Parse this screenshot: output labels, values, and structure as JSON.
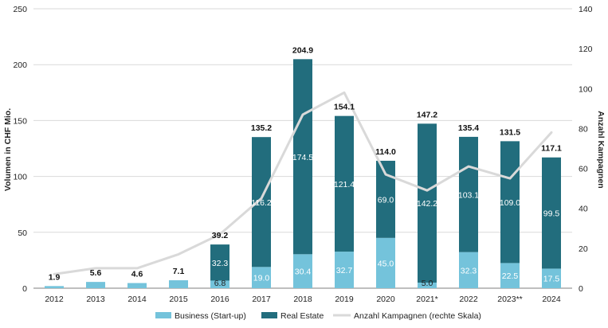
{
  "chart_data": {
    "type": "bar",
    "stacked": true,
    "categories": [
      "2012",
      "2013",
      "2014",
      "2015",
      "2016",
      "2017",
      "2018",
      "2019",
      "2020",
      "2021*",
      "2022",
      "2023**",
      "2024"
    ],
    "series": [
      {
        "name": "Business (Start-up)",
        "axis": "left",
        "color": "#74c3db",
        "values": [
          1.9,
          5.6,
          4.6,
          7.1,
          6.8,
          19.0,
          30.4,
          32.7,
          45.0,
          5.0,
          32.3,
          22.5,
          17.5
        ],
        "labels": [
          "",
          "",
          "",
          "",
          "6.8",
          "19.0",
          "30.4",
          "32.7",
          "45.0",
          "5.0",
          "32.3",
          "22.5",
          "17.5"
        ]
      },
      {
        "name": "Real Estate",
        "axis": "left",
        "color": "#226d7d",
        "values": [
          0,
          0,
          0,
          0,
          32.3,
          116.2,
          174.5,
          121.4,
          69.0,
          142.2,
          103.1,
          109.0,
          99.5
        ],
        "labels": [
          "",
          "",
          "",
          "",
          "32.3",
          "116.2",
          "174.5",
          "121.4",
          "69.0",
          "142.2",
          "103.1",
          "109.0",
          "99.5"
        ]
      },
      {
        "name": "Anzahl Kampagnen (rechte Skala)",
        "axis": "right",
        "type": "line",
        "color": "#d9d9d9",
        "values": [
          7,
          10,
          10,
          17,
          27,
          45,
          87,
          98,
          57,
          49,
          61,
          55,
          78
        ]
      }
    ],
    "totals": [
      "1.9",
      "5.6",
      "4.6",
      "7.1",
      "39.2",
      "135.2",
      "204.9",
      "154.1",
      "114.0",
      "147.2",
      "135.4",
      "131.5",
      "117.1"
    ],
    "ylabel": "Volumen in CHF Mio.",
    "y2label": "Anzahl Kampagnen",
    "ylim": [
      0,
      250
    ],
    "y2lim": [
      0,
      140
    ],
    "yticks": [
      "0",
      "50",
      "100",
      "150",
      "200",
      "250"
    ],
    "y2ticks": [
      "0",
      "20",
      "40",
      "60",
      "80",
      "100",
      "120",
      "140"
    ],
    "grid": true,
    "legend": "bottom"
  }
}
